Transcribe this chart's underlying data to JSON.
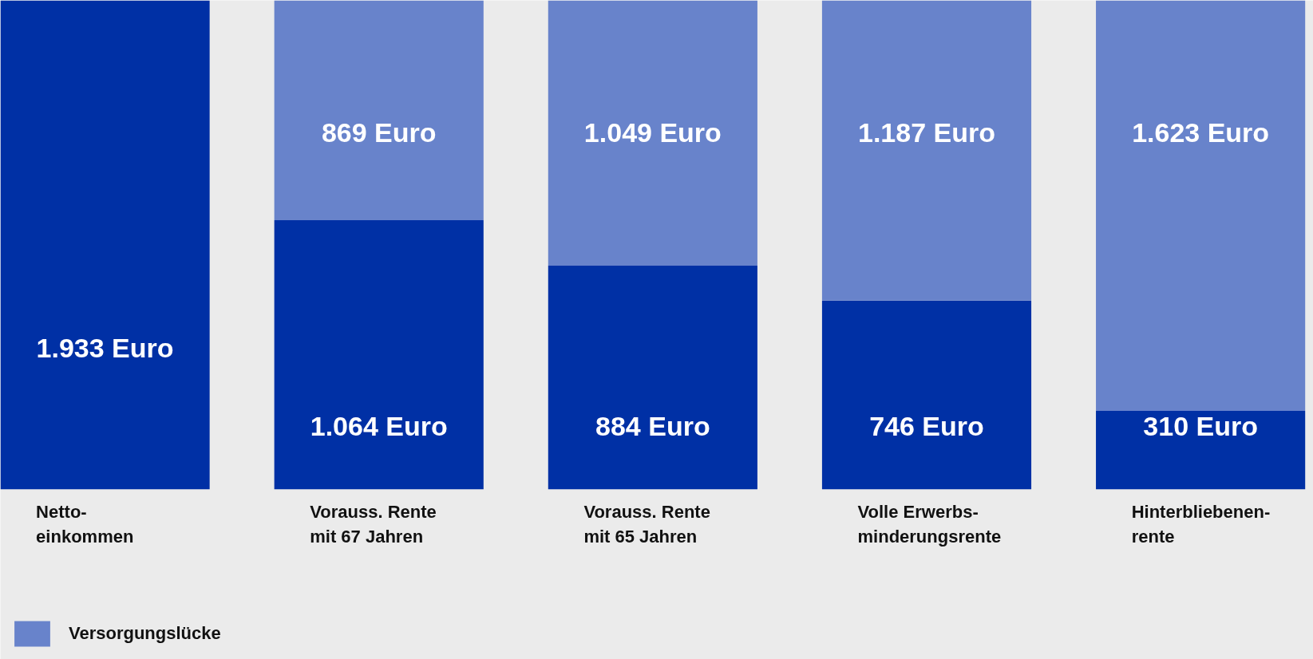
{
  "chart_data": {
    "type": "bar",
    "stacked": true,
    "legend": "bottom left",
    "grid": false,
    "categories": [
      "Netto-\neinkommen",
      "Vorauss. Rente\nmit 67 Jahren",
      "Vorauss. Rente\nmit 65 Jahren",
      "Volle Erwerbs-\nminderungsrente",
      "Hinterbliebenen-\nrente"
    ],
    "series": [
      {
        "color": "#0030a5",
        "values": [
          1933,
          1064,
          884,
          746,
          310
        ],
        "value_labels": [
          "1.933 Euro",
          "1.064 Euro",
          "884 Euro",
          "746 Euro",
          "310 Euro"
        ]
      },
      {
        "name": "Versorgungslücke",
        "color": "#6883cb",
        "values": [
          null,
          869,
          1049,
          1187,
          1623
        ],
        "value_labels": [
          null,
          "869 Euro",
          "1.049 Euro",
          "1.187 Euro",
          "1.623 Euro"
        ]
      }
    ]
  }
}
